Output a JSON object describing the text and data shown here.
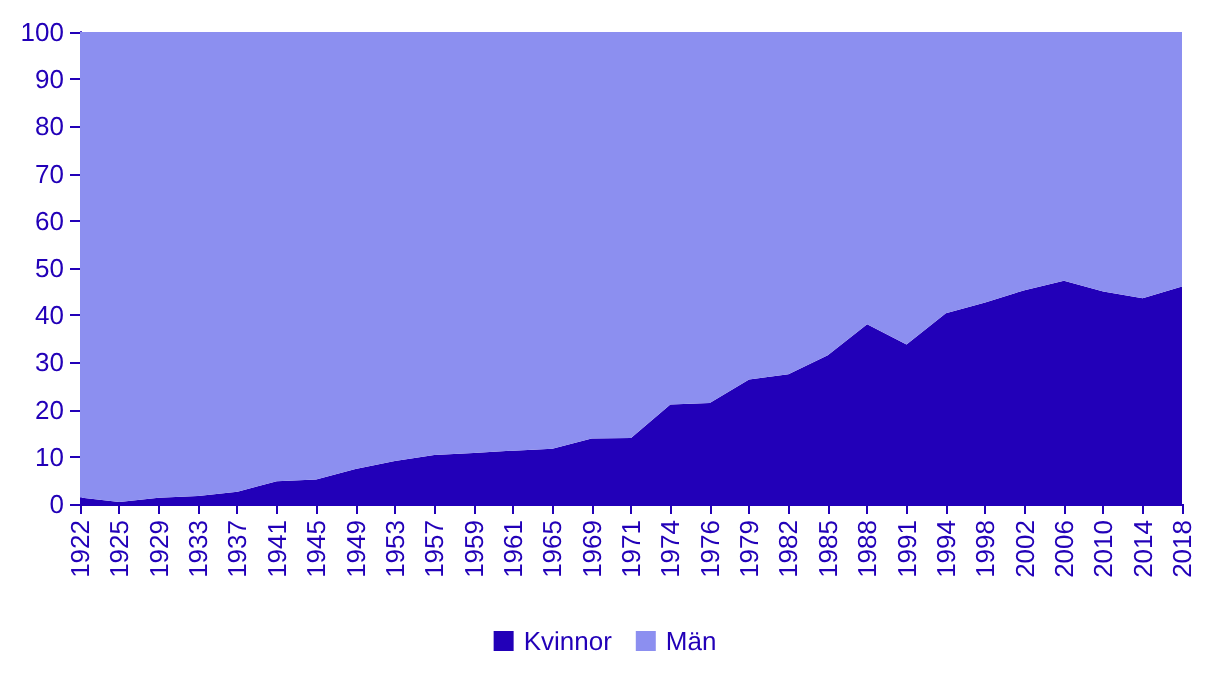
{
  "chart_data": {
    "type": "area",
    "stacked": true,
    "categories": [
      "1922",
      "1925",
      "1929",
      "1933",
      "1937",
      "1941",
      "1945",
      "1949",
      "1953",
      "1957",
      "1959",
      "1961",
      "1965",
      "1969",
      "1971",
      "1974",
      "1976",
      "1979",
      "1982",
      "1985",
      "1988",
      "1991",
      "1994",
      "1998",
      "2002",
      "2006",
      "2010",
      "2014",
      "2018"
    ],
    "series": [
      {
        "name": "Kvinnor",
        "color": "#2200b8",
        "values": [
          1.4,
          0.4,
          1.3,
          1.7,
          2.6,
          4.8,
          5.2,
          7.4,
          9.1,
          10.4,
          10.8,
          11.3,
          11.7,
          13.9,
          14.0,
          21.1,
          21.4,
          26.4,
          27.5,
          31.5,
          38.1,
          33.8,
          40.4,
          42.7,
          45.3,
          47.3,
          45.0,
          43.6,
          46.1
        ]
      },
      {
        "name": "Män",
        "color": "#8c8ff0",
        "values": [
          98.6,
          99.6,
          98.7,
          98.3,
          97.4,
          95.2,
          94.8,
          92.6,
          90.9,
          89.6,
          89.2,
          88.7,
          88.3,
          86.1,
          86.0,
          78.9,
          78.6,
          73.6,
          72.5,
          68.5,
          61.9,
          66.2,
          59.6,
          57.3,
          54.7,
          52.7,
          55.0,
          56.4,
          53.9
        ]
      }
    ],
    "ylim": [
      0,
      100
    ],
    "yticks": [
      0,
      10,
      20,
      30,
      40,
      50,
      60,
      70,
      80,
      90,
      100
    ],
    "grid": false,
    "legend": "bottom"
  }
}
